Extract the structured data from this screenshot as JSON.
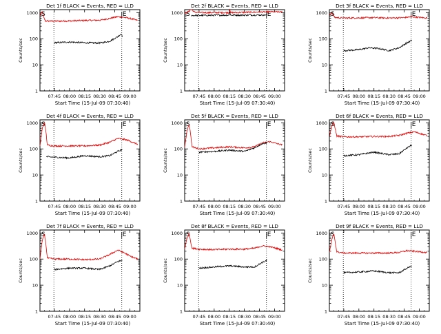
{
  "colors": {
    "events": "#000000",
    "lld": "#e00000",
    "axis": "#000000"
  },
  "chart_data": [
    {
      "type": "line",
      "title": "Det 1f BLACK = Events, RED = LLD",
      "ylabel": "Counts/sec",
      "xlabel": "Start Time (15-Jul-09 07:30:40)",
      "xticks": [
        "07:45",
        "08:00",
        "08:15",
        "08:30",
        "08:45",
        "09:00"
      ],
      "x_range": [
        "07:30:40",
        "09:10:00"
      ],
      "ylim": [
        1,
        1300
      ],
      "yscale": "log",
      "yticks": [
        "1",
        "10",
        "100",
        "1000"
      ],
      "markers": [
        {
          "label": "S",
          "time": "07:30:40"
        },
        {
          "label": "E",
          "time": "08:52:00"
        }
      ],
      "vlines": [
        "07:44:30",
        "08:52:00"
      ],
      "series": [
        {
          "color": "lld",
          "x": [
            "07:30:40",
            "07:33:00",
            "07:34:00",
            "07:36:00",
            "07:45:00",
            "08:00:00",
            "08:15:00",
            "08:30:00",
            "08:40:00",
            "08:48:00",
            "08:55:00",
            "09:00:00",
            "09:08:00"
          ],
          "y": [
            750,
            1100,
            700,
            480,
            470,
            480,
            500,
            510,
            600,
            700,
            650,
            600,
            500
          ]
        },
        {
          "color": "events",
          "x": [
            "07:45:00",
            "08:00:00",
            "08:15:00",
            "08:30:00",
            "08:40:00",
            "08:48:00",
            "08:52:00",
            "08:52:30"
          ],
          "y": [
            70,
            75,
            70,
            68,
            80,
            120,
            160,
            110
          ]
        }
      ]
    },
    {
      "type": "line",
      "title": "Det 2f BLACK = Events, RED = LLD",
      "ylabel": "Counts/sec",
      "xlabel": "Start Time (15-Jul-09 07:30:40)",
      "xticks": [
        "07:45",
        "08:00",
        "08:15",
        "08:30",
        "08:45",
        "09:00"
      ],
      "x_range": [
        "07:30:40",
        "09:10:00"
      ],
      "ylim": [
        1,
        1300
      ],
      "yscale": "log",
      "yticks": [
        "1",
        "10",
        "100",
        "1000"
      ],
      "markers": [
        {
          "label": "S",
          "time": "07:30:40"
        },
        {
          "label": "E",
          "time": "08:52:00"
        }
      ],
      "vlines": [
        "07:44:30",
        "08:52:00"
      ],
      "series": [
        {
          "color": "lld",
          "x": [
            "07:30:40",
            "07:35:00",
            "07:37:00",
            "07:40:00",
            "07:45:00",
            "08:00:00",
            "08:15:00",
            "08:15:30",
            "08:16:00",
            "08:30:00",
            "08:45:00",
            "09:00:00",
            "09:08:00"
          ],
          "y": [
            950,
            1100,
            1500,
            1050,
            1000,
            1000,
            1000,
            1600,
            1000,
            1020,
            1050,
            1080,
            1050
          ]
        },
        {
          "color": "events",
          "x": [
            "07:37:00",
            "07:45:00",
            "08:00:00",
            "08:15:00",
            "08:15:30",
            "08:16:00",
            "08:30:00",
            "08:45:00",
            "08:52:00"
          ],
          "y": [
            780,
            780,
            790,
            800,
            1300,
            800,
            800,
            810,
            800
          ]
        }
      ]
    },
    {
      "type": "line",
      "title": "Det 3f BLACK = Events, RED = LLD",
      "ylabel": "Counts/sec",
      "xlabel": "Start Time (15-Jul-09 07:30:40)",
      "xticks": [
        "07:45",
        "08:00",
        "08:15",
        "08:30",
        "08:45",
        "09:00"
      ],
      "x_range": [
        "07:30:40",
        "09:10:00"
      ],
      "ylim": [
        1,
        1300
      ],
      "yscale": "log",
      "yticks": [
        "1",
        "10",
        "100",
        "1000"
      ],
      "markers": [
        {
          "label": "S",
          "time": "07:30:40"
        },
        {
          "label": "E",
          "time": "08:52:00"
        }
      ],
      "vlines": [
        "07:44:30",
        "08:52:00"
      ],
      "series": [
        {
          "color": "lld",
          "x": [
            "07:30:40",
            "07:33:00",
            "07:36:00",
            "07:45:00",
            "08:00:00",
            "08:15:00",
            "08:30:00",
            "08:45:00",
            "08:52:00",
            "09:00:00",
            "09:08:00"
          ],
          "y": [
            800,
            1000,
            650,
            620,
            630,
            640,
            620,
            640,
            700,
            650,
            620
          ]
        },
        {
          "color": "events",
          "x": [
            "07:45:00",
            "08:00:00",
            "08:10:00",
            "08:20:00",
            "08:30:00",
            "08:40:00",
            "08:48:00",
            "08:52:30"
          ],
          "y": [
            35,
            38,
            45,
            42,
            35,
            45,
            70,
            85
          ]
        }
      ]
    },
    {
      "type": "line",
      "title": "Det 4f BLACK = Events, RED = LLD",
      "ylabel": "Counts/sec",
      "xlabel": "Start Time (15-Jul-09 07:30:40)",
      "xticks": [
        "07:45",
        "08:00",
        "08:15",
        "08:30",
        "08:45",
        "09:00"
      ],
      "x_range": [
        "07:30:40",
        "09:10:00"
      ],
      "ylim": [
        1,
        1300
      ],
      "yscale": "log",
      "yticks": [
        "1",
        "10",
        "100",
        "1000"
      ],
      "markers": [
        {
          "label": "S",
          "time": "07:30:40"
        },
        {
          "label": "E",
          "time": "08:52:00"
        }
      ],
      "vlines": [
        "07:44:30",
        "08:52:00"
      ],
      "series": [
        {
          "color": "lld",
          "x": [
            "07:30:40",
            "07:33:00",
            "07:35:00",
            "07:36:30",
            "07:38:00",
            "07:45:00",
            "08:00:00",
            "08:15:00",
            "08:30:00",
            "08:40:00",
            "08:48:00",
            "08:55:00",
            "09:00:00",
            "09:08:00"
          ],
          "y": [
            130,
            600,
            1100,
            500,
            140,
            130,
            130,
            130,
            140,
            180,
            250,
            230,
            200,
            150
          ]
        },
        {
          "color": "events",
          "x": [
            "07:37:00",
            "07:45:00",
            "08:00:00",
            "08:15:00",
            "08:30:00",
            "08:40:00",
            "08:48:00",
            "08:52:30"
          ],
          "y": [
            50,
            48,
            45,
            55,
            50,
            55,
            80,
            95
          ]
        }
      ]
    },
    {
      "type": "line",
      "title": "Det 5f BLACK = Events, RED = LLD",
      "ylabel": "Counts/sec",
      "xlabel": "Start Time (15-Jul-09 07:30:40)",
      "xticks": [
        "07:45",
        "08:00",
        "08:15",
        "08:30",
        "08:45",
        "09:00"
      ],
      "x_range": [
        "07:30:40",
        "09:10:00"
      ],
      "ylim": [
        1,
        1300
      ],
      "yscale": "log",
      "yticks": [
        "1",
        "10",
        "100",
        "1000"
      ],
      "markers": [
        {
          "label": "S",
          "time": "07:30:40"
        },
        {
          "label": "E",
          "time": "08:52:00"
        }
      ],
      "vlines": [
        "07:44:30",
        "08:52:00"
      ],
      "series": [
        {
          "color": "lld",
          "x": [
            "07:30:40",
            "07:33:00",
            "07:35:00",
            "07:36:30",
            "07:38:00",
            "07:45:00",
            "08:00:00",
            "08:15:00",
            "08:30:00",
            "08:40:00",
            "08:48:00",
            "08:55:00",
            "09:00:00",
            "09:08:00"
          ],
          "y": [
            110,
            500,
            900,
            400,
            120,
            100,
            110,
            120,
            110,
            120,
            170,
            190,
            170,
            140
          ]
        },
        {
          "color": "events",
          "x": [
            "07:45:00",
            "08:00:00",
            "08:15:00",
            "08:30:00",
            "08:40:00",
            "08:48:00",
            "08:52:30"
          ],
          "y": [
            75,
            80,
            90,
            80,
            110,
            160,
            170
          ]
        }
      ]
    },
    {
      "type": "line",
      "title": "Det 6f BLACK = Events, RED = LLD",
      "ylabel": "Counts/sec",
      "xlabel": "Start Time (15-Jul-09 07:30:40)",
      "xticks": [
        "07:45",
        "08:00",
        "08:15",
        "08:30",
        "08:45",
        "09:00"
      ],
      "x_range": [
        "07:30:40",
        "09:10:00"
      ],
      "ylim": [
        1,
        1300
      ],
      "yscale": "log",
      "yticks": [
        "1",
        "10",
        "100",
        "1000"
      ],
      "markers": [
        {
          "label": "S",
          "time": "07:30:40"
        },
        {
          "label": "E",
          "time": "08:52:00"
        }
      ],
      "vlines": [
        "07:44:30",
        "08:52:00"
      ],
      "series": [
        {
          "color": "lld",
          "x": [
            "07:30:40",
            "07:33:00",
            "07:35:00",
            "07:36:30",
            "07:38:00",
            "07:45:00",
            "08:00:00",
            "08:15:00",
            "08:30:00",
            "08:40:00",
            "08:48:00",
            "08:55:00",
            "09:00:00",
            "09:08:00"
          ],
          "y": [
            300,
            700,
            1100,
            600,
            310,
            290,
            290,
            300,
            300,
            330,
            400,
            450,
            400,
            320
          ]
        },
        {
          "color": "events",
          "x": [
            "07:45:00",
            "08:00:00",
            "08:15:00",
            "08:30:00",
            "08:40:00",
            "08:48:00",
            "08:52:30"
          ],
          "y": [
            55,
            60,
            75,
            60,
            65,
            110,
            140
          ]
        }
      ]
    },
    {
      "type": "line",
      "title": "Det 7f BLACK = Events, RED = LLD",
      "ylabel": "Counts/sec",
      "xlabel": "Start Time (15-Jul-09 07:30:40)",
      "xticks": [
        "07:45",
        "08:00",
        "08:15",
        "08:30",
        "08:45",
        "09:00"
      ],
      "x_range": [
        "07:30:40",
        "09:10:00"
      ],
      "ylim": [
        1,
        1300
      ],
      "yscale": "log",
      "yticks": [
        "1",
        "10",
        "100",
        "1000"
      ],
      "markers": [
        {
          "label": "S",
          "time": "07:30:40"
        },
        {
          "label": "E",
          "time": "08:52:00"
        }
      ],
      "vlines": [
        "07:44:30",
        "08:52:00"
      ],
      "series": [
        {
          "color": "lld",
          "x": [
            "07:30:40",
            "07:33:00",
            "07:35:00",
            "07:36:30",
            "07:38:00",
            "07:45:00",
            "08:00:00",
            "08:15:00",
            "08:30:00",
            "08:40:00",
            "08:48:00",
            "08:55:00",
            "09:00:00",
            "09:08:00"
          ],
          "y": [
            100,
            500,
            1000,
            400,
            110,
            100,
            100,
            95,
            100,
            150,
            220,
            170,
            130,
            100
          ]
        },
        {
          "color": "events",
          "x": [
            "07:45:00",
            "08:00:00",
            "08:15:00",
            "08:30:00",
            "08:40:00",
            "08:48:00",
            "08:52:30"
          ],
          "y": [
            40,
            45,
            45,
            40,
            55,
            80,
            90
          ]
        }
      ]
    },
    {
      "type": "line",
      "title": "Det 8f BLACK = Events, RED = LLD",
      "ylabel": "Counts/sec",
      "xlabel": "Start Time (15-Jul-09 07:30:40)",
      "xticks": [
        "07:45",
        "08:00",
        "08:15",
        "08:30",
        "08:45",
        "09:00"
      ],
      "x_range": [
        "07:30:40",
        "09:10:00"
      ],
      "ylim": [
        1,
        1300
      ],
      "yscale": "log",
      "yticks": [
        "1",
        "10",
        "100",
        "1000"
      ],
      "markers": [
        {
          "label": "S",
          "time": "07:30:40"
        },
        {
          "label": "E",
          "time": "08:52:00"
        }
      ],
      "vlines": [
        "07:44:30",
        "08:52:00"
      ],
      "series": [
        {
          "color": "lld",
          "x": [
            "07:30:40",
            "07:33:00",
            "07:35:00",
            "07:36:30",
            "07:38:00",
            "07:45:00",
            "08:00:00",
            "08:15:00",
            "08:30:00",
            "08:40:00",
            "08:48:00",
            "08:55:00",
            "09:00:00",
            "09:08:00"
          ],
          "y": [
            250,
            600,
            1000,
            500,
            260,
            240,
            230,
            240,
            240,
            260,
            320,
            300,
            270,
            220
          ]
        },
        {
          "color": "events",
          "x": [
            "07:45:00",
            "08:00:00",
            "08:15:00",
            "08:30:00",
            "08:40:00",
            "08:48:00",
            "08:52:30"
          ],
          "y": [
            45,
            50,
            55,
            50,
            50,
            75,
            90
          ]
        }
      ]
    },
    {
      "type": "line",
      "title": "Det 9f BLACK = Events, RED = LLD",
      "ylabel": "Counts/sec",
      "xlabel": "Start Time (15-Jul-09 07:30:40)",
      "xticks": [
        "07:45",
        "08:00",
        "08:15",
        "08:30",
        "08:45",
        "09:00"
      ],
      "x_range": [
        "07:30:40",
        "09:10:00"
      ],
      "ylim": [
        1,
        1300
      ],
      "yscale": "log",
      "yticks": [
        "1",
        "10",
        "100",
        "1000"
      ],
      "markers": [
        {
          "label": "S",
          "time": "07:30:40"
        },
        {
          "label": "E",
          "time": "08:52:00"
        }
      ],
      "vlines": [
        "07:44:30",
        "08:52:00"
      ],
      "series": [
        {
          "color": "lld",
          "x": [
            "07:30:40",
            "07:33:00",
            "07:35:00",
            "07:36:30",
            "07:38:00",
            "07:45:00",
            "08:00:00",
            "08:15:00",
            "08:30:00",
            "08:40:00",
            "08:48:00",
            "08:55:00",
            "09:00:00",
            "09:08:00"
          ],
          "y": [
            180,
            500,
            1000,
            450,
            190,
            170,
            170,
            170,
            170,
            180,
            210,
            200,
            190,
            180
          ]
        },
        {
          "color": "events",
          "x": [
            "07:45:00",
            "08:00:00",
            "08:15:00",
            "08:30:00",
            "08:40:00",
            "08:48:00",
            "08:52:30"
          ],
          "y": [
            30,
            32,
            35,
            30,
            30,
            45,
            55
          ]
        }
      ]
    }
  ]
}
